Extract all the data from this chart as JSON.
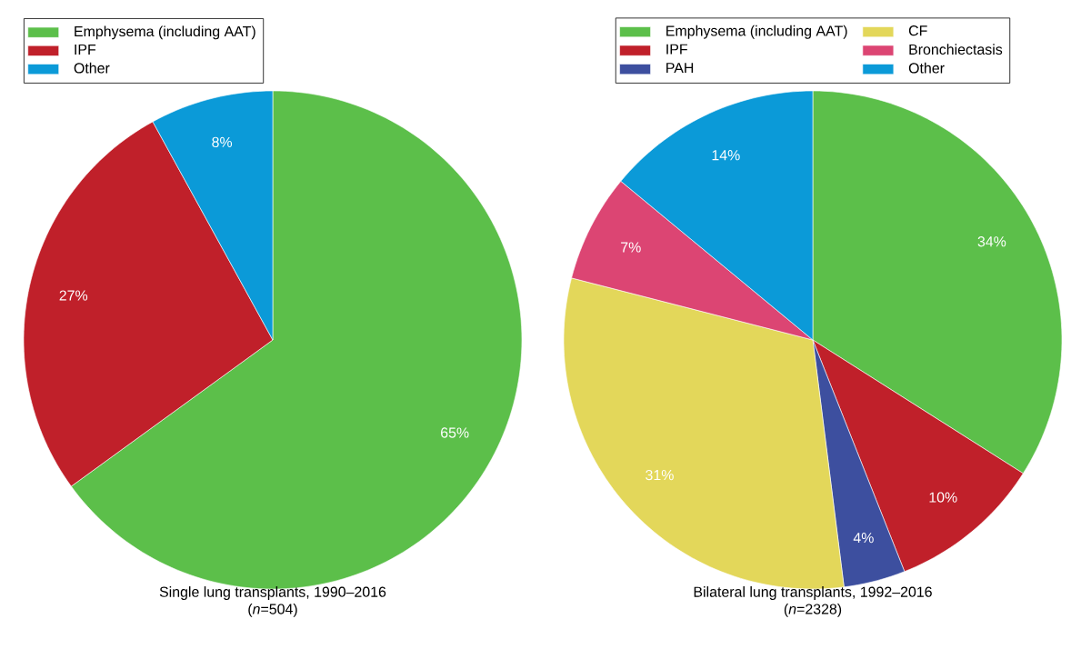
{
  "chart_data": [
    {
      "type": "pie",
      "title": "Single lung transplants, 1990–2016",
      "subtitle": "(*n*=504)",
      "categories": [
        "Emphysema (including AAT)",
        "IPF",
        "Other"
      ],
      "values": [
        65,
        27,
        8
      ],
      "colors": [
        "#5cbf4a",
        "#c0202a",
        "#0b9ad8"
      ],
      "value_labels": [
        "65%",
        "27%",
        "8%"
      ],
      "legend": "top left"
    },
    {
      "type": "pie",
      "title": "Bilateral lung transplants, 1992–2016",
      "subtitle": "(*n*=2328)",
      "categories": [
        "Emphysema (including AAT)",
        "IPF",
        "PAH",
        "CF",
        "Bronchiectasis",
        "Other"
      ],
      "values": [
        34,
        10,
        4,
        31,
        7,
        14
      ],
      "colors": [
        "#5cbf4a",
        "#c0202a",
        "#3d4f9f",
        "#e3d75a",
        "#dc4573",
        "#0b9ad8"
      ],
      "value_labels": [
        "34%",
        "10%",
        "4%",
        "31%",
        "7%",
        "14%"
      ],
      "legend": "top"
    }
  ]
}
